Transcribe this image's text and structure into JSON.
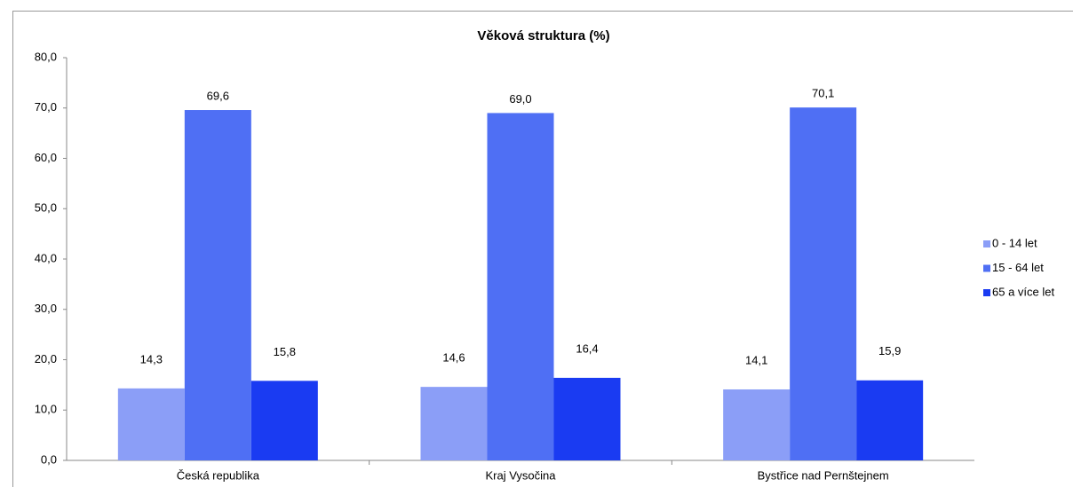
{
  "chart_data": {
    "type": "bar",
    "title": "Věková struktura (%)",
    "categories": [
      "Česká republika",
      "Kraj Vysočina",
      "Bystřice nad Pernštejnem"
    ],
    "series": [
      {
        "name": "0 - 14 let",
        "color": "#8b9ef7",
        "values": [
          14.3,
          14.6,
          14.1
        ],
        "value_labels": [
          "14,3",
          "14,6",
          "14,1"
        ]
      },
      {
        "name": "15 - 64 let",
        "color": "#4f6ff4",
        "values": [
          69.6,
          69.0,
          70.1
        ],
        "value_labels": [
          "69,6",
          "69,0",
          "70,1"
        ]
      },
      {
        "name": "65 a více let",
        "color": "#1a3bf2",
        "values": [
          15.8,
          16.4,
          15.9
        ],
        "value_labels": [
          "15,8",
          "16,4",
          "15,9"
        ]
      }
    ],
    "ylim": [
      0,
      80
    ],
    "yticks": [
      {
        "value": 0,
        "label": "0,0"
      },
      {
        "value": 10,
        "label": "10,0"
      },
      {
        "value": 20,
        "label": "20,0"
      },
      {
        "value": 30,
        "label": "30,0"
      },
      {
        "value": 40,
        "label": "40,0"
      },
      {
        "value": 50,
        "label": "50,0"
      },
      {
        "value": 60,
        "label": "60,0"
      },
      {
        "value": 70,
        "label": "70,0"
      },
      {
        "value": 80,
        "label": "80,0"
      }
    ],
    "grid": false,
    "legend": "right"
  }
}
